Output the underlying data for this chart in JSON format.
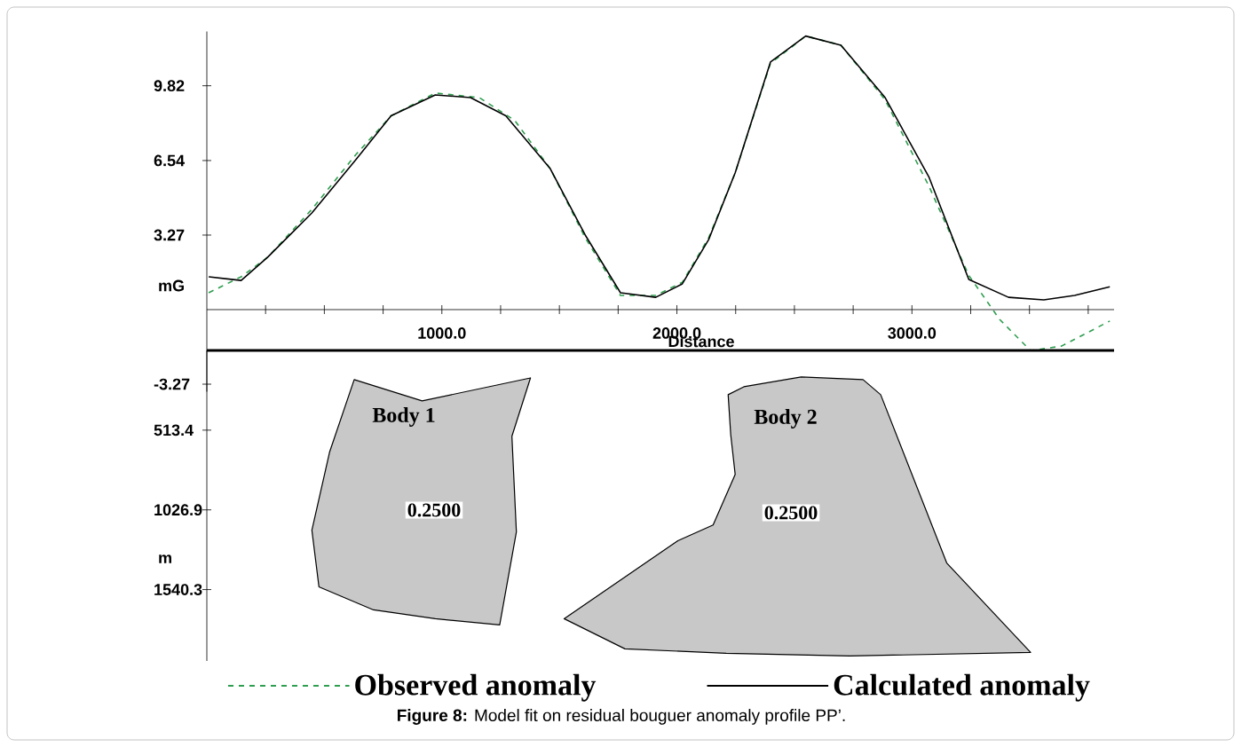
{
  "chart_data": [
    {
      "type": "line",
      "xlabel": "Distance",
      "ylabel": "mG",
      "xlim": [
        0,
        3860
      ],
      "ylim": [
        -3.6,
        12.2
      ],
      "xticks": [
        {
          "value": 250,
          "label": null
        },
        {
          "value": 500,
          "label": null
        },
        {
          "value": 750,
          "label": null
        },
        {
          "value": 1000,
          "label": "1000.0"
        },
        {
          "value": 1250,
          "label": null
        },
        {
          "value": 1500,
          "label": null
        },
        {
          "value": 1750,
          "label": null
        },
        {
          "value": 2000,
          "label": "2000.0"
        },
        {
          "value": 2250,
          "label": null
        },
        {
          "value": 2500,
          "label": null
        },
        {
          "value": 2750,
          "label": null
        },
        {
          "value": 3000,
          "label": "3000.0"
        },
        {
          "value": 3250,
          "label": null
        },
        {
          "value": 3500,
          "label": null
        },
        {
          "value": 3750,
          "label": null
        }
      ],
      "yticks": [
        -3.27,
        3.27,
        6.54,
        9.82
      ],
      "legend": "bottom",
      "series": [
        {
          "name": "Observed anomaly",
          "color": "#2e9e4f",
          "line_style": "dashed",
          "x": [
            8,
            146,
            259,
            447,
            634,
            784,
            972,
            1159,
            1310,
            1460,
            1610,
            1760,
            1910,
            2023,
            2135,
            2248,
            2398,
            2548,
            2698,
            2886,
            3073,
            3242,
            3373,
            3505,
            3636,
            3842
          ],
          "values": [
            0.74,
            1.44,
            2.3,
            4.4,
            6.8,
            8.5,
            9.5,
            9.3,
            8.3,
            6.2,
            3.15,
            0.62,
            0.62,
            1.2,
            3.15,
            6.0,
            10.8,
            12.0,
            11.6,
            9.2,
            5.4,
            1.5,
            -0.43,
            -1.8,
            -1.6,
            -0.5
          ]
        },
        {
          "name": "Calculated anomaly",
          "color": "#000000",
          "line_style": "solid",
          "x": [
            8,
            146,
            259,
            447,
            634,
            784,
            972,
            1122,
            1272,
            1460,
            1610,
            1760,
            1910,
            2023,
            2135,
            2248,
            2398,
            2548,
            2698,
            2886,
            3073,
            3242,
            3411,
            3561,
            3692,
            3842
          ],
          "values": [
            1.44,
            1.28,
            2.3,
            4.24,
            6.58,
            8.5,
            9.42,
            9.3,
            8.5,
            6.2,
            3.27,
            0.74,
            0.54,
            1.13,
            3.07,
            6.0,
            10.86,
            12.0,
            11.6,
            9.3,
            5.8,
            1.32,
            0.54,
            0.43,
            0.62,
            1.0
          ]
        }
      ],
      "annotations": [
        "**Figure 8:** Model fit on residual bouguer anomaly profile PP’."
      ]
    },
    {
      "type": "area",
      "ylabel": "m",
      "xlim": [
        0,
        3860
      ],
      "ylim": [
        2000,
        0
      ],
      "yticks": [
        513.4,
        1026.9,
        1540.3
      ],
      "tick_labels": "y",
      "series": [
        {
          "color": "#c8c8c8",
          "x": [
            627,
            916,
            1377,
            1298,
            1317,
            1246,
            972,
            709,
            477,
            447,
            522
          ],
          "values": [
            188,
            325,
            177,
            553,
            1169,
            1768,
            1728,
            1671,
            1523,
            1158,
            656
          ]
        },
        {
          "color": "#c8c8c8",
          "x": [
            2218,
            2285,
            2529,
            2792,
            2867,
            3148,
            3505,
            2735,
            2210,
            1779,
            1520,
            2004,
            2154,
            2248,
            2229
          ],
          "values": [
            285,
            234,
            171,
            188,
            285,
            1369,
            1945,
            1968,
            1951,
            1922,
            1728,
            1226,
            1124,
            799,
            542
          ]
        }
      ],
      "annotations": [
        "Body 1",
        "0.2500",
        "Body 2",
        "0.2500"
      ]
    }
  ]
}
